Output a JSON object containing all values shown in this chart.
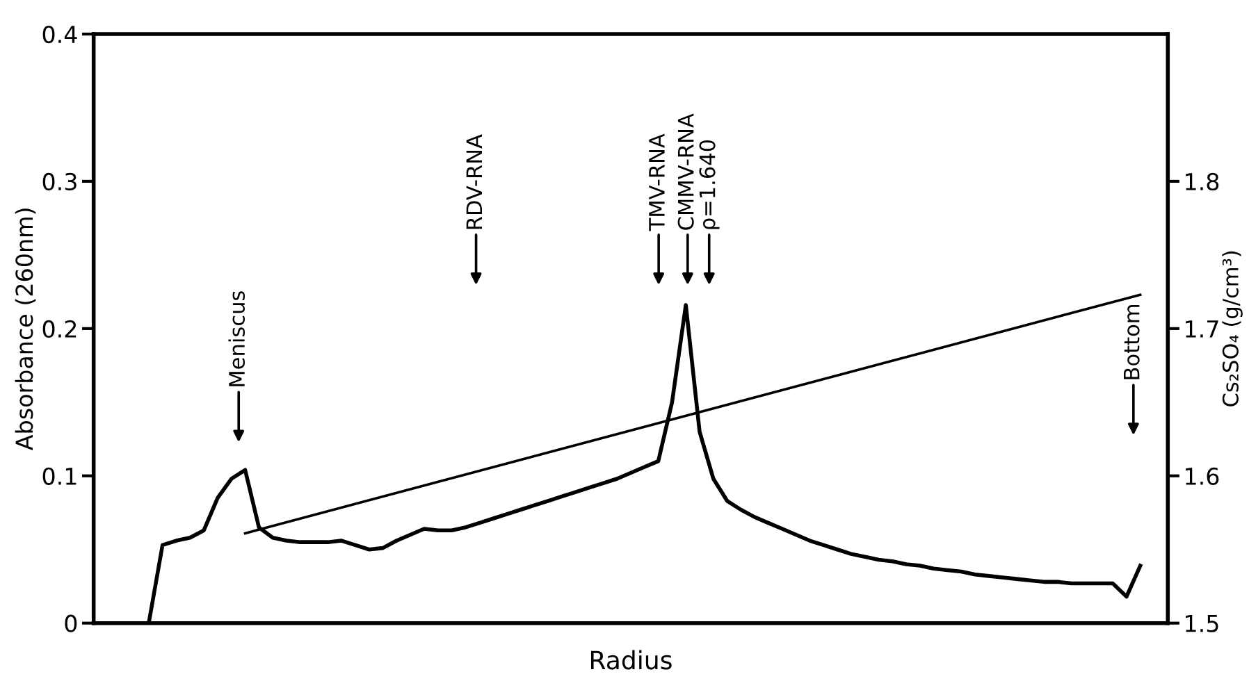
{
  "chart_data": {
    "type": "line",
    "xlabel": "Radius",
    "ylabel": "Absorbance (260nm)",
    "y2label": "Cs₂SO₄ (g/cm³)",
    "categories": [
      null,
      null,
      null,
      null,
      null,
      null,
      null,
      null,
      null,
      null,
      null,
      null,
      null,
      null,
      null,
      null,
      null,
      null,
      null,
      null,
      null,
      null,
      null,
      null,
      null,
      null,
      null,
      null,
      null,
      null,
      null,
      null,
      null,
      null,
      null,
      null,
      null,
      null,
      null,
      null,
      null,
      null,
      null,
      null,
      null,
      null,
      null,
      null,
      null,
      null,
      null,
      null,
      null,
      null,
      null,
      null,
      null,
      null,
      null,
      null,
      null,
      null,
      null,
      null,
      null,
      null,
      null,
      null,
      null,
      null,
      null,
      null,
      null,
      null,
      null,
      null,
      null,
      null,
      null
    ],
    "ylim": [
      0,
      0.4
    ],
    "yticks": [
      0,
      0.1,
      0.2,
      0.3,
      0.4
    ],
    "y2lim": [
      1.5,
      1.9
    ],
    "y2ticks": [
      1.5,
      1.6,
      1.7,
      1.8
    ],
    "grid": false,
    "legend": false,
    "marker": "none",
    "line_style": "solid",
    "series": [
      {
        "color": "#000000",
        "axis": "y",
        "values": [
          null,
          null,
          null,
          null,
          0,
          0.053,
          0.056,
          0.058,
          0.063,
          0.085,
          0.098,
          0.104,
          0.065,
          0.058,
          0.056,
          0.055,
          0.055,
          0.055,
          0.056,
          0.053,
          0.05,
          0.051,
          0.056,
          0.06,
          0.064,
          0.063,
          0.063,
          0.065,
          0.068,
          0.071,
          0.074,
          0.077,
          0.08,
          0.083,
          0.086,
          0.089,
          0.092,
          0.095,
          0.098,
          0.102,
          0.106,
          0.11,
          0.15,
          0.216,
          0.13,
          0.098,
          0.083,
          0.077,
          0.072,
          0.068,
          0.064,
          0.06,
          0.056,
          0.053,
          0.05,
          0.047,
          0.045,
          0.043,
          0.042,
          0.04,
          0.039,
          0.037,
          0.036,
          0.035,
          0.033,
          0.032,
          0.031,
          0.03,
          0.029,
          0.028,
          0.028,
          0.027,
          0.027,
          0.027,
          0.027,
          0.018,
          0.039,
          null,
          null
        ]
      },
      {
        "color": "#000000",
        "axis": "y2",
        "values": [
          null,
          null,
          null,
          null,
          null,
          null,
          null,
          null,
          null,
          null,
          null,
          1.561,
          null,
          null,
          null,
          null,
          null,
          null,
          null,
          null,
          null,
          null,
          null,
          null,
          null,
          null,
          null,
          null,
          null,
          null,
          null,
          null,
          null,
          null,
          null,
          null,
          null,
          null,
          null,
          null,
          null,
          null,
          null,
          null,
          null,
          null,
          null,
          null,
          null,
          null,
          null,
          null,
          null,
          null,
          null,
          null,
          null,
          null,
          null,
          null,
          null,
          null,
          null,
          null,
          null,
          null,
          null,
          null,
          null,
          null,
          null,
          null,
          null,
          null,
          null,
          null,
          1.723,
          null,
          null
        ]
      }
    ],
    "annotations": [
      "Meniscus",
      "RDV-RNA",
      "TMV-RNA",
      "CMMV-RNA",
      "ρ=1.640",
      "Bottom"
    ]
  }
}
